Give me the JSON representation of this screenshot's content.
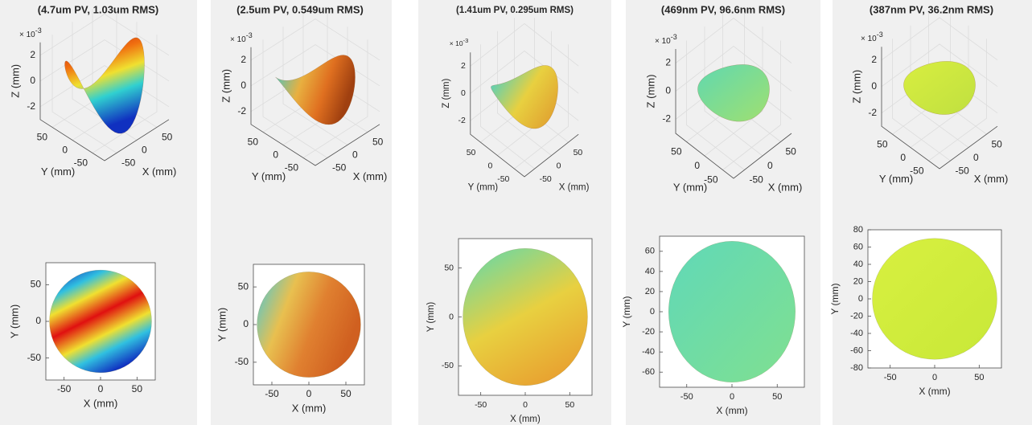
{
  "chart_data": [
    {
      "type": "surface3d",
      "title": "(4.7um PV, 1.03um RMS)",
      "xlabel": "X (mm)",
      "ylabel": "Y (mm)",
      "zlabel": "Z (mm)",
      "z_multiplier": {
        "base": "× 10",
        "exponent": "-3"
      },
      "xlim": [
        -80,
        80
      ],
      "ylim": [
        -80,
        80
      ],
      "zlim": [
        -3,
        3
      ],
      "xticks": [
        -50,
        0,
        50
      ],
      "yticks": [
        -50,
        0,
        50
      ],
      "zticks": [
        -2,
        0,
        2
      ]
    },
    {
      "type": "map",
      "xlabel": "X (mm)",
      "ylabel": "Y (mm)",
      "xlim": [
        -75,
        75
      ],
      "ylim": [
        -80,
        80
      ],
      "xticks": [
        -50,
        0,
        50
      ],
      "yticks": [
        -50,
        0,
        50
      ]
    },
    {
      "type": "surface3d",
      "title": "(2.5um PV, 0.549um RMS)",
      "xlabel": "X (mm)",
      "ylabel": "Y (mm)",
      "zlabel": "Z (mm)",
      "z_multiplier": {
        "base": "× 10",
        "exponent": "-3"
      },
      "xlim": [
        -80,
        80
      ],
      "ylim": [
        -80,
        80
      ],
      "zlim": [
        -3,
        3
      ],
      "xticks": [
        -50,
        0,
        50
      ],
      "yticks": [
        -50,
        0,
        50
      ],
      "zticks": [
        -2,
        0,
        2
      ]
    },
    {
      "type": "map",
      "xlabel": "X (mm)",
      "ylabel": "Y (mm)",
      "xlim": [
        -75,
        75
      ],
      "ylim": [
        -80,
        80
      ],
      "xticks": [
        -50,
        0,
        50
      ],
      "yticks": [
        -50,
        0,
        50
      ]
    },
    {
      "type": "surface3d",
      "title": "(1.41um PV, 0.295um RMS)",
      "xlabel": "X (mm)",
      "ylabel": "Y (mm)",
      "zlabel": "Z (mm)",
      "z_multiplier": {
        "base": "× 10",
        "exponent": "-3"
      },
      "xlim": [
        -80,
        80
      ],
      "ylim": [
        -80,
        80
      ],
      "zlim": [
        -3,
        3
      ],
      "xticks": [
        -50,
        0,
        50
      ],
      "yticks": [
        -50,
        0,
        50
      ],
      "zticks": [
        -2,
        0,
        2
      ]
    },
    {
      "type": "map",
      "xlabel": "X (mm)",
      "ylabel": "Y (mm)",
      "xlim": [
        -75,
        75
      ],
      "ylim": [
        -80,
        80
      ],
      "xticks": [
        -50,
        0,
        50
      ],
      "yticks": [
        -50,
        0,
        50
      ]
    },
    {
      "type": "surface3d",
      "title": "(469nm PV, 96.6nm RMS)",
      "xlabel": "X (mm)",
      "ylabel": "Y (mm)",
      "zlabel": "Z (mm)",
      "z_multiplier": {
        "base": "× 10",
        "exponent": "-3"
      },
      "xlim": [
        -80,
        80
      ],
      "ylim": [
        -80,
        80
      ],
      "zlim": [
        -3,
        3
      ],
      "xticks": [
        -50,
        0,
        50
      ],
      "yticks": [
        -50,
        0,
        50
      ],
      "zticks": [
        -2,
        0,
        2
      ]
    },
    {
      "type": "map",
      "xlabel": "X (mm)",
      "ylabel": "Y (mm)",
      "xlim": [
        -80,
        80
      ],
      "ylim": [
        -75,
        75
      ],
      "xticks": [
        -50,
        0,
        50
      ],
      "yticks": [
        -60,
        -40,
        -20,
        0,
        20,
        40,
        60
      ]
    },
    {
      "type": "surface3d",
      "title": "(387nm PV, 36.2nm RMS)",
      "xlabel": "X (mm)",
      "ylabel": "Y (mm)",
      "zlabel": "Z (mm)",
      "z_multiplier": {
        "base": "× 10",
        "exponent": "-3"
      },
      "xlim": [
        -80,
        80
      ],
      "ylim": [
        -80,
        80
      ],
      "zlim": [
        -3,
        3
      ],
      "xticks": [
        -50,
        0,
        50
      ],
      "yticks": [
        -50,
        0,
        50
      ],
      "zticks": [
        -2,
        0,
        2
      ]
    },
    {
      "type": "map",
      "xlabel": "X (mm)",
      "ylabel": "Y (mm)",
      "xlim": [
        -75,
        75
      ],
      "ylim": [
        -80,
        80
      ],
      "xticks": [
        -50,
        0,
        50
      ],
      "yticks": [
        -80,
        -60,
        -40,
        -20,
        0,
        20,
        40,
        60,
        80
      ]
    }
  ]
}
